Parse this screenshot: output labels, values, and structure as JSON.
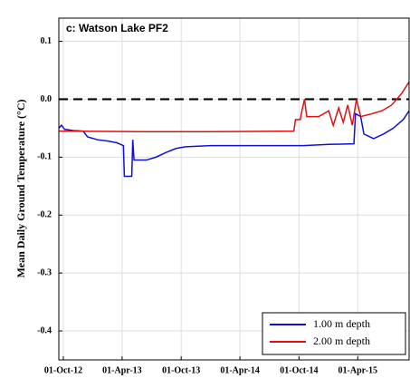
{
  "chart_data": {
    "type": "line",
    "title": "c: Watson Lake PF2",
    "y_label": "Mean Daily Ground Temperature (°C)",
    "xlim": [
      "2012-09-17",
      "2015-09-07"
    ],
    "xticks": [
      {
        "value": "2012-10-01",
        "label": "01-Oct-12"
      },
      {
        "value": "2013-04-01",
        "label": "01-Apr-13"
      },
      {
        "value": "2013-10-01",
        "label": "01-Oct-13"
      },
      {
        "value": "2014-04-01",
        "label": "01-Apr-14"
      },
      {
        "value": "2014-10-01",
        "label": "01-Oct-14"
      },
      {
        "value": "2015-04-01",
        "label": "01-Apr-15"
      }
    ],
    "ylim": [
      -0.45,
      0.14
    ],
    "yticks": [
      0.1,
      {
        "value": 0,
        "label": "0.0"
      },
      -0.1,
      -0.2,
      -0.3,
      -0.4
    ],
    "grid": true,
    "hline": 0,
    "legend": "lower right",
    "series": [
      {
        "name": "1.00 m depth",
        "color": "#1010d8",
        "x": [
          "2012-09-17",
          "2012-09-25",
          "2012-10-05",
          "2012-11-01",
          "2012-12-01",
          "2012-12-15",
          "2013-01-15",
          "2013-02-15",
          "2013-03-15",
          "2013-04-05",
          "2013-04-08",
          "2013-05-01",
          "2013-05-04",
          "2013-05-08",
          "2013-06-15",
          "2013-07-15",
          "2013-08-15",
          "2013-09-15",
          "2013-10-15",
          "2014-01-01",
          "2014-06-01",
          "2014-09-01",
          "2014-10-15",
          "2015-01-01",
          "2015-03-20",
          "2015-03-25",
          "2015-04-10",
          "2015-04-20",
          "2015-05-20",
          "2015-06-20",
          "2015-07-20",
          "2015-08-20",
          "2015-09-07"
        ],
        "values": [
          -0.05,
          -0.045,
          -0.052,
          -0.054,
          -0.055,
          -0.065,
          -0.07,
          -0.072,
          -0.075,
          -0.08,
          -0.133,
          -0.133,
          -0.07,
          -0.105,
          -0.105,
          -0.1,
          -0.092,
          -0.085,
          -0.082,
          -0.08,
          -0.08,
          -0.08,
          -0.08,
          -0.078,
          -0.077,
          -0.025,
          -0.03,
          -0.06,
          -0.068,
          -0.06,
          -0.05,
          -0.035,
          -0.02
        ]
      },
      {
        "name": "2.00 m depth",
        "color": "#e01010",
        "x": [
          "2012-09-17",
          "2013-06-01",
          "2014-01-01",
          "2014-09-15",
          "2014-09-20",
          "2014-10-05",
          "2014-10-10",
          "2014-10-18",
          "2014-10-25",
          "2014-12-01",
          "2015-01-01",
          "2015-01-15",
          "2015-02-01",
          "2015-02-15",
          "2015-03-01",
          "2015-03-15",
          "2015-03-28",
          "2015-04-10",
          "2015-05-15",
          "2015-06-15",
          "2015-07-15",
          "2015-08-15",
          "2015-09-07"
        ],
        "values": [
          -0.055,
          -0.056,
          -0.056,
          -0.055,
          -0.035,
          -0.035,
          -0.02,
          0,
          -0.03,
          -0.03,
          -0.02,
          -0.045,
          -0.015,
          -0.04,
          -0.01,
          -0.045,
          0,
          -0.03,
          -0.025,
          -0.02,
          -0.01,
          0.01,
          0.03
        ]
      }
    ]
  }
}
